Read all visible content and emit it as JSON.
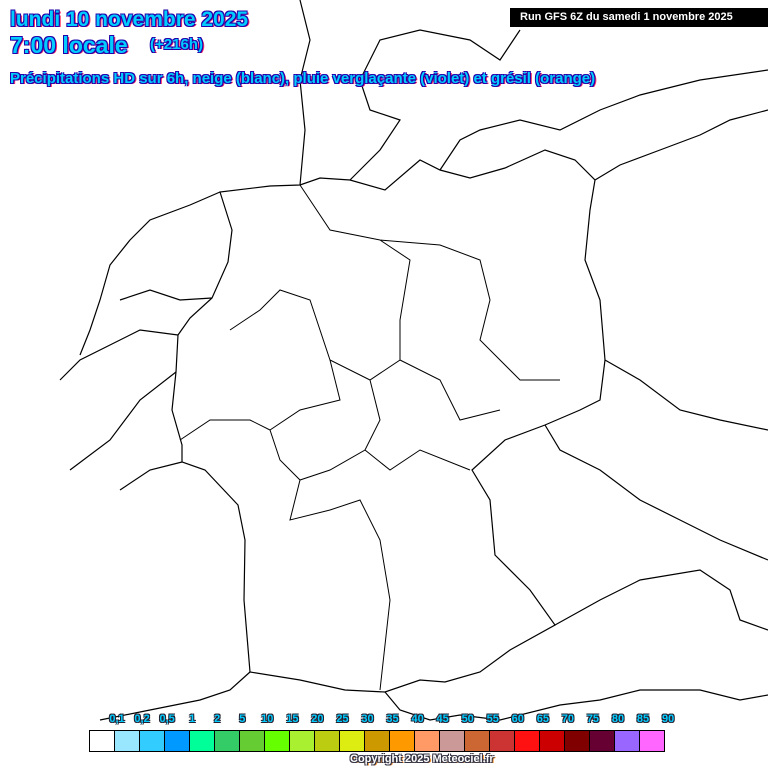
{
  "header": {
    "date": "lundi 10 novembre 2025",
    "time": "7:00 locale",
    "lead": "(+216h)",
    "description": "Précipitations HD sur 6h, neige (blanc), pluie verglaçante (violet) et grésil (orange)",
    "run": "Run GFS 6Z du samedi 1 novembre 2025"
  },
  "legend": {
    "labels": [
      "0,1",
      "0,2",
      "0,5",
      "1",
      "2",
      "5",
      "10",
      "15",
      "20",
      "25",
      "30",
      "35",
      "40",
      "45",
      "50",
      "55",
      "60",
      "65",
      "70",
      "75",
      "80",
      "85",
      "90"
    ],
    "colors": [
      "#ffffff",
      "#99e6ff",
      "#33ccff",
      "#0099ff",
      "#00ff99",
      "#33cc66",
      "#66cc33",
      "#66ff00",
      "#a8f030",
      "#bbcc11",
      "#dded11",
      "#cc9900",
      "#ff9900",
      "#ff9966",
      "#cc9999",
      "#cc6633",
      "#cc3333",
      "#ff1111",
      "#cc0000",
      "#800000",
      "#660033",
      "#9966ff",
      "#ff66ff"
    ]
  },
  "footer": {
    "copyright": "Copyright 2025 Meteociel.fr"
  }
}
